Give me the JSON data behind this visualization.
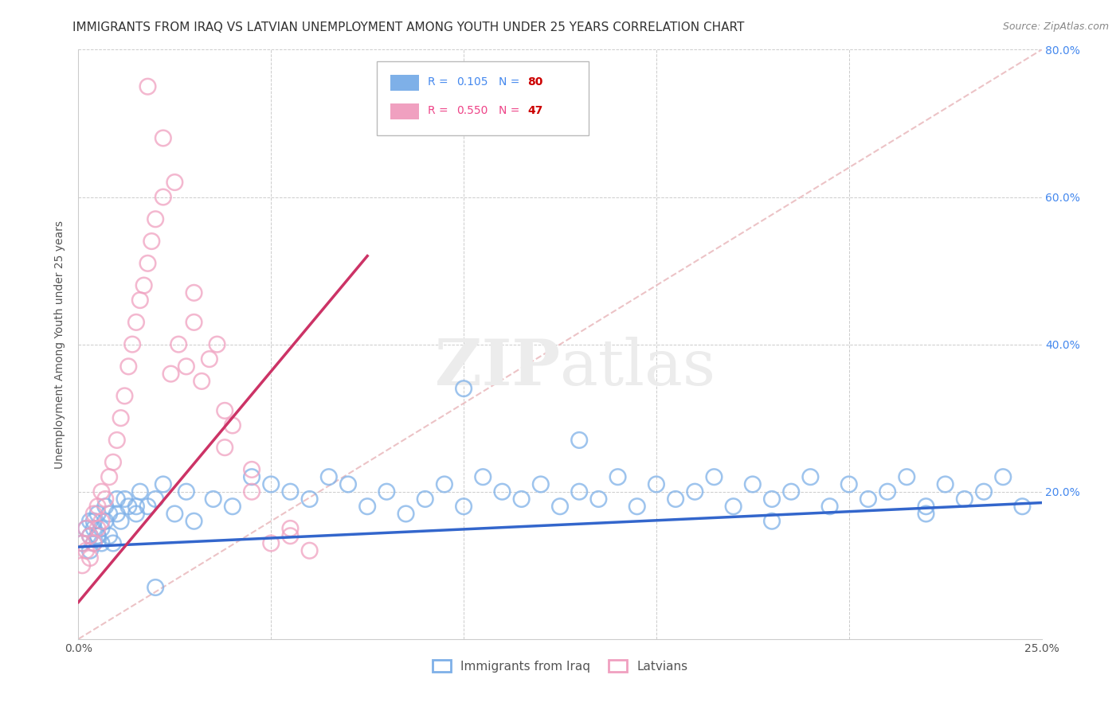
{
  "title": "IMMIGRANTS FROM IRAQ VS LATVIAN UNEMPLOYMENT AMONG YOUTH UNDER 25 YEARS CORRELATION CHART",
  "source": "Source: ZipAtlas.com",
  "ylabel": "Unemployment Among Youth under 25 years",
  "xlim": [
    0.0,
    0.25
  ],
  "ylim": [
    0.0,
    0.8
  ],
  "xticks": [
    0.0,
    0.05,
    0.1,
    0.15,
    0.2,
    0.25
  ],
  "xticklabels": [
    "0.0%",
    "",
    "",
    "",
    "",
    "25.0%"
  ],
  "yticks": [
    0.0,
    0.2,
    0.4,
    0.6,
    0.8
  ],
  "yticklabels_right": [
    "",
    "20.0%",
    "40.0%",
    "60.0%",
    "80.0%"
  ],
  "scatter_blue_x": [
    0.001,
    0.002,
    0.003,
    0.003,
    0.004,
    0.004,
    0.005,
    0.005,
    0.006,
    0.007,
    0.007,
    0.008,
    0.009,
    0.01,
    0.011,
    0.012,
    0.013,
    0.015,
    0.016,
    0.018,
    0.02,
    0.022,
    0.025,
    0.028,
    0.03,
    0.035,
    0.04,
    0.045,
    0.05,
    0.055,
    0.06,
    0.065,
    0.07,
    0.075,
    0.08,
    0.085,
    0.09,
    0.095,
    0.1,
    0.105,
    0.11,
    0.115,
    0.12,
    0.125,
    0.13,
    0.135,
    0.14,
    0.145,
    0.15,
    0.155,
    0.16,
    0.165,
    0.17,
    0.175,
    0.18,
    0.185,
    0.19,
    0.195,
    0.2,
    0.205,
    0.21,
    0.215,
    0.22,
    0.225,
    0.23,
    0.235,
    0.24,
    0.245,
    0.003,
    0.004,
    0.005,
    0.006,
    0.008,
    0.01,
    0.015,
    0.02,
    0.1,
    0.13,
    0.18,
    0.22
  ],
  "scatter_blue_y": [
    0.13,
    0.15,
    0.12,
    0.14,
    0.16,
    0.13,
    0.14,
    0.17,
    0.15,
    0.16,
    0.18,
    0.14,
    0.13,
    0.17,
    0.16,
    0.19,
    0.18,
    0.17,
    0.2,
    0.18,
    0.19,
    0.21,
    0.17,
    0.2,
    0.16,
    0.19,
    0.18,
    0.22,
    0.21,
    0.2,
    0.19,
    0.22,
    0.21,
    0.18,
    0.2,
    0.17,
    0.19,
    0.21,
    0.18,
    0.22,
    0.2,
    0.19,
    0.21,
    0.18,
    0.2,
    0.19,
    0.22,
    0.18,
    0.21,
    0.19,
    0.2,
    0.22,
    0.18,
    0.21,
    0.19,
    0.2,
    0.22,
    0.18,
    0.21,
    0.19,
    0.2,
    0.22,
    0.18,
    0.21,
    0.19,
    0.2,
    0.22,
    0.18,
    0.16,
    0.15,
    0.14,
    0.13,
    0.17,
    0.19,
    0.18,
    0.07,
    0.34,
    0.27,
    0.16,
    0.17
  ],
  "scatter_pink_x": [
    0.001,
    0.001,
    0.002,
    0.002,
    0.003,
    0.003,
    0.004,
    0.004,
    0.005,
    0.005,
    0.006,
    0.006,
    0.007,
    0.008,
    0.009,
    0.01,
    0.011,
    0.012,
    0.013,
    0.014,
    0.015,
    0.016,
    0.017,
    0.018,
    0.019,
    0.02,
    0.022,
    0.024,
    0.026,
    0.028,
    0.03,
    0.032,
    0.034,
    0.036,
    0.038,
    0.04,
    0.045,
    0.05,
    0.055,
    0.06,
    0.018,
    0.022,
    0.025,
    0.03,
    0.038,
    0.045,
    0.055
  ],
  "scatter_pink_y": [
    0.1,
    0.13,
    0.12,
    0.15,
    0.11,
    0.14,
    0.13,
    0.17,
    0.15,
    0.18,
    0.16,
    0.2,
    0.19,
    0.22,
    0.24,
    0.27,
    0.3,
    0.33,
    0.37,
    0.4,
    0.43,
    0.46,
    0.48,
    0.51,
    0.54,
    0.57,
    0.6,
    0.36,
    0.4,
    0.37,
    0.43,
    0.35,
    0.38,
    0.4,
    0.26,
    0.29,
    0.23,
    0.13,
    0.15,
    0.12,
    0.75,
    0.68,
    0.62,
    0.47,
    0.31,
    0.2,
    0.14
  ],
  "blue_line_x": [
    0.0,
    0.25
  ],
  "blue_line_y": [
    0.125,
    0.185
  ],
  "pink_line_x": [
    0.0,
    0.075
  ],
  "pink_line_y": [
    0.05,
    0.52
  ],
  "diag_line_x": [
    0.0,
    0.25
  ],
  "diag_line_y": [
    0.0,
    0.8
  ],
  "bg_color": "#ffffff",
  "grid_color": "#cccccc",
  "scatter_blue_color": "#7eb0e8",
  "scatter_pink_color": "#f0a0c0",
  "trend_blue_color": "#3366cc",
  "trend_pink_color": "#cc3366",
  "diag_color": "#e8b4b8",
  "watermark_zip": "ZIP",
  "watermark_atlas": "atlas",
  "ytick_color": "#4488ee",
  "title_fontsize": 11,
  "axis_label_fontsize": 10,
  "tick_fontsize": 10,
  "legend_fontsize": 10,
  "legend_r1_color": "#4488ee",
  "legend_r2_color": "#ee4488",
  "legend_n_color": "#cc0000"
}
